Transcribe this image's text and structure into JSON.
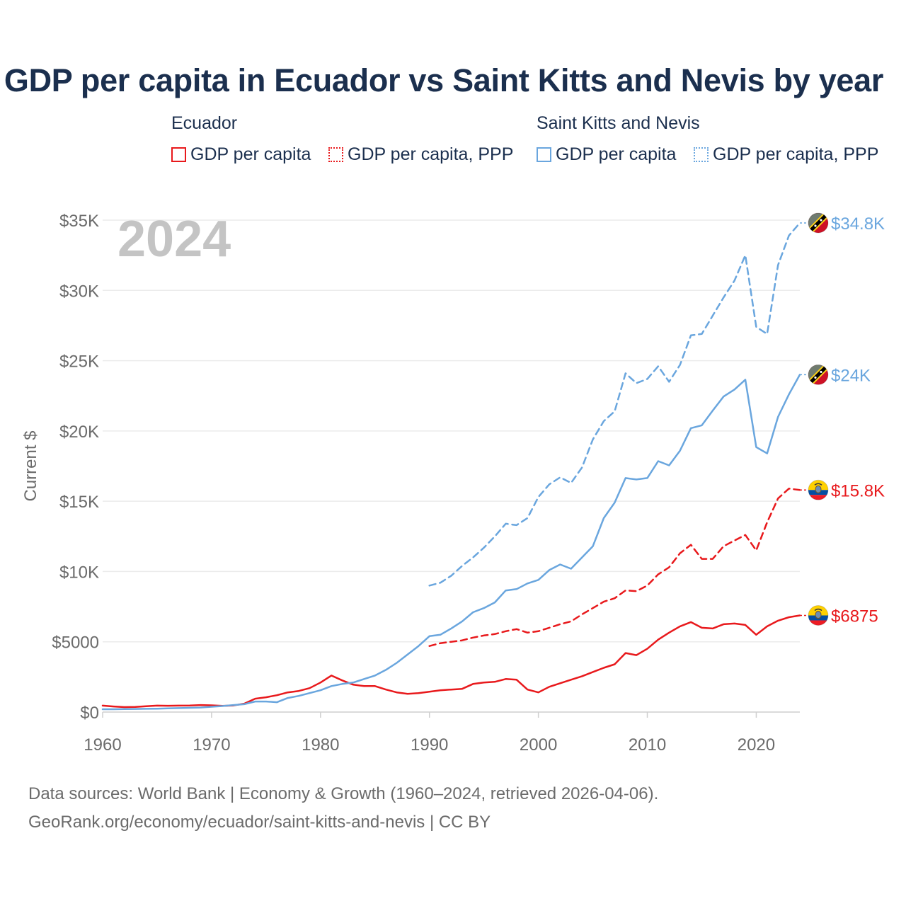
{
  "title": "GDP per capita in Ecuador vs Saint Kitts and Nevis by year",
  "legend": {
    "groups": [
      {
        "name": "Ecuador",
        "items": [
          {
            "label": "GDP per capita",
            "color": "#e8191c",
            "style": "solid"
          },
          {
            "label": "GDP per capita, PPP",
            "color": "#e8191c",
            "style": "dotted"
          }
        ]
      },
      {
        "name": "Saint Kitts and Nevis",
        "items": [
          {
            "label": "GDP per capita",
            "color": "#6aa6de",
            "style": "solid"
          },
          {
            "label": "GDP per capita, PPP",
            "color": "#6aa6de",
            "style": "dotted"
          }
        ]
      }
    ]
  },
  "year_label": "2024",
  "footer": {
    "line1": "Data sources: World Bank | Economy & Growth (1960–2024, retrieved 2026-04-06).",
    "line2": "GeoRank.org/economy/ecuador/saint-kitts-and-nevis | CC BY"
  },
  "colors": {
    "ecuador": "#e8191c",
    "skn": "#6aa6de",
    "title": "#1b2f4e",
    "axis_text": "#6b6b6b"
  },
  "chart_data": {
    "type": "line",
    "title": "GDP per capita in Ecuador vs Saint Kitts and Nevis by year",
    "xlabel": "",
    "ylabel": "Current $",
    "xlim": [
      1960,
      2024
    ],
    "ylim": [
      0,
      35000
    ],
    "x_ticks": [
      1960,
      1970,
      1980,
      1990,
      2000,
      2010,
      2020
    ],
    "x_tick_labels": [
      "1960",
      "1970",
      "1980",
      "1990",
      "2000",
      "2010",
      "2020"
    ],
    "y_ticks": [
      0,
      5000,
      10000,
      15000,
      20000,
      25000,
      30000,
      35000
    ],
    "y_tick_labels": [
      "$0",
      "$5000",
      "$10K",
      "$15K",
      "$20K",
      "$25K",
      "$30K",
      "$35K"
    ],
    "grid": true,
    "series": [
      {
        "name": "Ecuador GDP per capita",
        "color": "#e8191c",
        "dash": "solid",
        "end_label": "$6875",
        "flag": "ecuador",
        "x": [
          1960,
          1961,
          1962,
          1963,
          1964,
          1965,
          1966,
          1967,
          1968,
          1969,
          1970,
          1971,
          1972,
          1973,
          1974,
          1975,
          1976,
          1977,
          1978,
          1979,
          1980,
          1981,
          1982,
          1983,
          1984,
          1985,
          1986,
          1987,
          1988,
          1989,
          1990,
          1991,
          1992,
          1993,
          1994,
          1995,
          1996,
          1997,
          1998,
          1999,
          2000,
          2001,
          2002,
          2003,
          2004,
          2005,
          2006,
          2007,
          2008,
          2009,
          2010,
          2011,
          2012,
          2013,
          2014,
          2015,
          2016,
          2017,
          2018,
          2019,
          2020,
          2021,
          2022,
          2023,
          2024
        ],
        "y": [
          460,
          400,
          350,
          370,
          420,
          460,
          450,
          460,
          470,
          500,
          480,
          440,
          470,
          600,
          950,
          1050,
          1200,
          1400,
          1500,
          1700,
          2100,
          2600,
          2250,
          1950,
          1850,
          1850,
          1600,
          1400,
          1300,
          1350,
          1450,
          1550,
          1600,
          1650,
          2000,
          2100,
          2150,
          2350,
          2300,
          1600,
          1400,
          1800,
          2050,
          2300,
          2550,
          2850,
          3150,
          3400,
          4200,
          4050,
          4500,
          5150,
          5650,
          6100,
          6400,
          6000,
          5950,
          6250,
          6300,
          6200,
          5500,
          6100,
          6500,
          6750,
          6875
        ]
      },
      {
        "name": "Ecuador GDP per capita, PPP",
        "color": "#e8191c",
        "dash": "dashed",
        "end_label": "$15.8K",
        "flag": "ecuador",
        "x": [
          1990,
          1991,
          1992,
          1993,
          1994,
          1995,
          1996,
          1997,
          1998,
          1999,
          2000,
          2001,
          2002,
          2003,
          2004,
          2005,
          2006,
          2007,
          2008,
          2009,
          2010,
          2011,
          2012,
          2013,
          2014,
          2015,
          2016,
          2017,
          2018,
          2019,
          2020,
          2021,
          2022,
          2023,
          2024
        ],
        "y": [
          4700,
          4900,
          5000,
          5100,
          5300,
          5450,
          5550,
          5750,
          5900,
          5650,
          5750,
          6000,
          6250,
          6450,
          6950,
          7400,
          7850,
          8100,
          8650,
          8600,
          9000,
          9800,
          10300,
          11300,
          11900,
          10900,
          10900,
          11800,
          12200,
          12600,
          11500,
          13500,
          15200,
          15900,
          15800
        ]
      },
      {
        "name": "Saint Kitts and Nevis GDP per capita",
        "color": "#6aa6de",
        "dash": "solid",
        "end_label": "$24K",
        "flag": "skn",
        "x": [
          1960,
          1961,
          1962,
          1963,
          1964,
          1965,
          1966,
          1967,
          1968,
          1969,
          1970,
          1971,
          1972,
          1973,
          1974,
          1975,
          1976,
          1977,
          1978,
          1979,
          1980,
          1981,
          1982,
          1983,
          1984,
          1985,
          1986,
          1987,
          1988,
          1989,
          1990,
          1991,
          1992,
          1993,
          1994,
          1995,
          1996,
          1997,
          1998,
          1999,
          2000,
          2001,
          2002,
          2003,
          2004,
          2005,
          2006,
          2007,
          2008,
          2009,
          2010,
          2011,
          2012,
          2013,
          2014,
          2015,
          2016,
          2017,
          2018,
          2019,
          2020,
          2021,
          2022,
          2023,
          2024
        ],
        "y": [
          200,
          200,
          210,
          220,
          230,
          240,
          260,
          280,
          300,
          320,
          380,
          430,
          500,
          560,
          750,
          750,
          700,
          1000,
          1150,
          1350,
          1550,
          1850,
          2000,
          2100,
          2350,
          2600,
          3000,
          3500,
          4100,
          4700,
          5400,
          5500,
          5950,
          6450,
          7100,
          7400,
          7800,
          8650,
          8750,
          9150,
          9400,
          10100,
          10500,
          10200,
          11000,
          11800,
          13800,
          14900,
          16650,
          16550,
          16650,
          17850,
          17550,
          18600,
          20200,
          20400,
          21450,
          22450,
          22950,
          23650,
          18850,
          18400,
          21000,
          22600,
          24000
        ]
      },
      {
        "name": "Saint Kitts and Nevis GDP per capita, PPP",
        "color": "#6aa6de",
        "dash": "dashed",
        "end_label": "$34.8K",
        "flag": "skn",
        "x": [
          1990,
          1991,
          1992,
          1993,
          1994,
          1995,
          1996,
          1997,
          1998,
          1999,
          2000,
          2001,
          2002,
          2003,
          2004,
          2005,
          2006,
          2007,
          2008,
          2009,
          2010,
          2011,
          2012,
          2013,
          2014,
          2015,
          2016,
          2017,
          2018,
          2019,
          2020,
          2021,
          2022,
          2023,
          2024
        ],
        "y": [
          9000,
          9200,
          9700,
          10400,
          11000,
          11700,
          12500,
          13400,
          13300,
          13800,
          15300,
          16200,
          16700,
          16300,
          17400,
          19400,
          20700,
          21400,
          24100,
          23400,
          23700,
          24600,
          23500,
          24700,
          26800,
          26900,
          28200,
          29500,
          30700,
          32500,
          27400,
          26900,
          31800,
          33900,
          34800
        ]
      }
    ]
  }
}
